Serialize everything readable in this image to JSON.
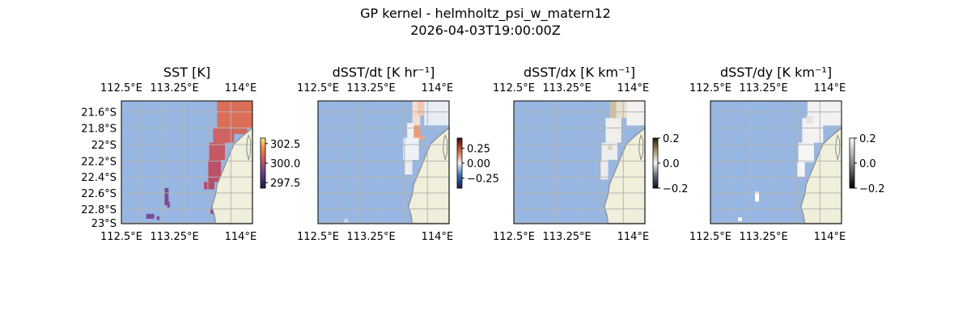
{
  "figure": {
    "title_line1": "GP kernel - helmholtz_psi_w_matern12",
    "title_line2": "2026-04-03T19:00:00Z"
  },
  "colors": {
    "ocean": "#97b6e1",
    "land": "#efefdb",
    "coast": "#8c8c8c",
    "grid": "#b4b4b4"
  },
  "chart_data": [
    {
      "type": "heatmap",
      "title": "SST [K]",
      "lon_ticks": [
        "112.5°E",
        "113.25°E",
        "114°E"
      ],
      "lat_ticks": [
        "21.6°S",
        "21.8°S",
        "22°S",
        "22.2°S",
        "22.4°S",
        "22.6°S",
        "22.8°S",
        "23°S"
      ],
      "colorbar": {
        "ticks": [
          "302.5",
          "300.0",
          "297.5"
        ],
        "values": [
          302.5,
          300.0,
          297.5
        ],
        "range": [
          296.8,
          303.2
        ],
        "colormap": "thermal"
      },
      "shows_lat_labels": true
    },
    {
      "type": "heatmap",
      "title": "dSST/dt [K hr⁻¹]",
      "lon_ticks": [
        "112.5°E",
        "113.25°E",
        "114°E"
      ],
      "lat_ticks": [],
      "colorbar": {
        "ticks": [
          "0.25",
          "0.00",
          "−0.25"
        ],
        "values": [
          0.25,
          0.0,
          -0.25
        ],
        "range": [
          -0.42,
          0.42
        ],
        "colormap": "balance"
      },
      "shows_lat_labels": false
    },
    {
      "type": "heatmap",
      "title": "dSST/dx [K km⁻¹]",
      "lon_ticks": [
        "112.5°E",
        "113.25°E",
        "114°E"
      ],
      "lat_ticks": [],
      "colorbar": {
        "ticks": [
          "0.2",
          "0.0",
          "−0.2"
        ],
        "values": [
          0.2,
          0.0,
          -0.2
        ],
        "range": [
          -0.2,
          0.2
        ],
        "colormap": "diff"
      },
      "shows_lat_labels": false
    },
    {
      "type": "heatmap",
      "title": "dSST/dy [K km⁻¹]",
      "lon_ticks": [
        "112.5°E",
        "113.25°E",
        "114°E"
      ],
      "lat_ticks": [],
      "colorbar": {
        "ticks": [
          "0.2",
          "0.0",
          "−0.2"
        ],
        "values": [
          0.2,
          0.0,
          -0.2
        ],
        "range": [
          -0.2,
          0.2
        ],
        "colormap": "gray"
      },
      "shows_lat_labels": false
    }
  ]
}
